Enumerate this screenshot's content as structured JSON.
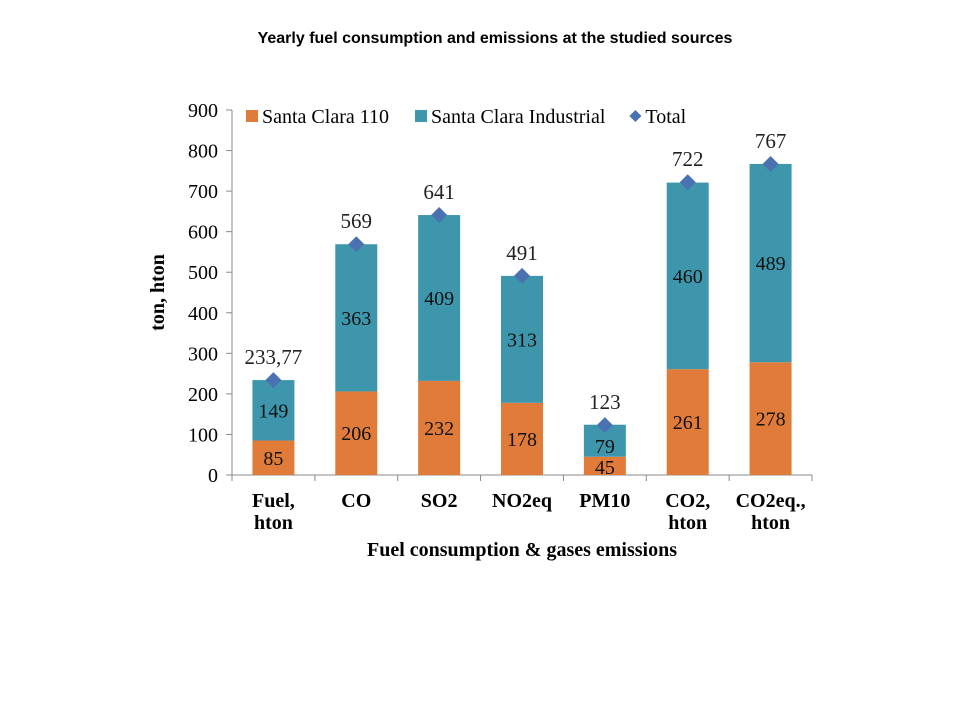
{
  "page_title": "Yearly fuel consumption and emissions at the studied sources",
  "chart_data": {
    "type": "bar",
    "stacked": true,
    "categories": [
      [
        "Fuel,",
        "hton"
      ],
      [
        "CO"
      ],
      [
        "SO2"
      ],
      [
        "NO2eq"
      ],
      [
        "PM10"
      ],
      [
        "CO2,",
        "hton"
      ],
      [
        "CO2eq.,",
        "hton"
      ]
    ],
    "series": [
      {
        "name": "Santa Clara 110",
        "color": "#E07B39",
        "values": [
          85,
          206,
          232,
          178,
          45,
          261,
          278
        ]
      },
      {
        "name": "Santa Clara Industrial",
        "color": "#3E96AD",
        "values": [
          149,
          363,
          409,
          313,
          79,
          460,
          489
        ]
      }
    ],
    "total": {
      "name": "Total",
      "color": "#4A72B0",
      "marker": "diamond",
      "values": [
        234,
        569,
        641,
        491,
        123,
        722,
        767
      ],
      "labels": [
        "233,77",
        "569",
        "641",
        "491",
        "123",
        "722",
        "767"
      ]
    },
    "ylabel": "ton, hton",
    "xlabel": "Fuel consumption & gases emissions",
    "ylim": [
      0,
      900
    ],
    "yticks": [
      0,
      100,
      200,
      300,
      400,
      500,
      600,
      700,
      800,
      900
    ],
    "grid": false,
    "legend": "top"
  }
}
